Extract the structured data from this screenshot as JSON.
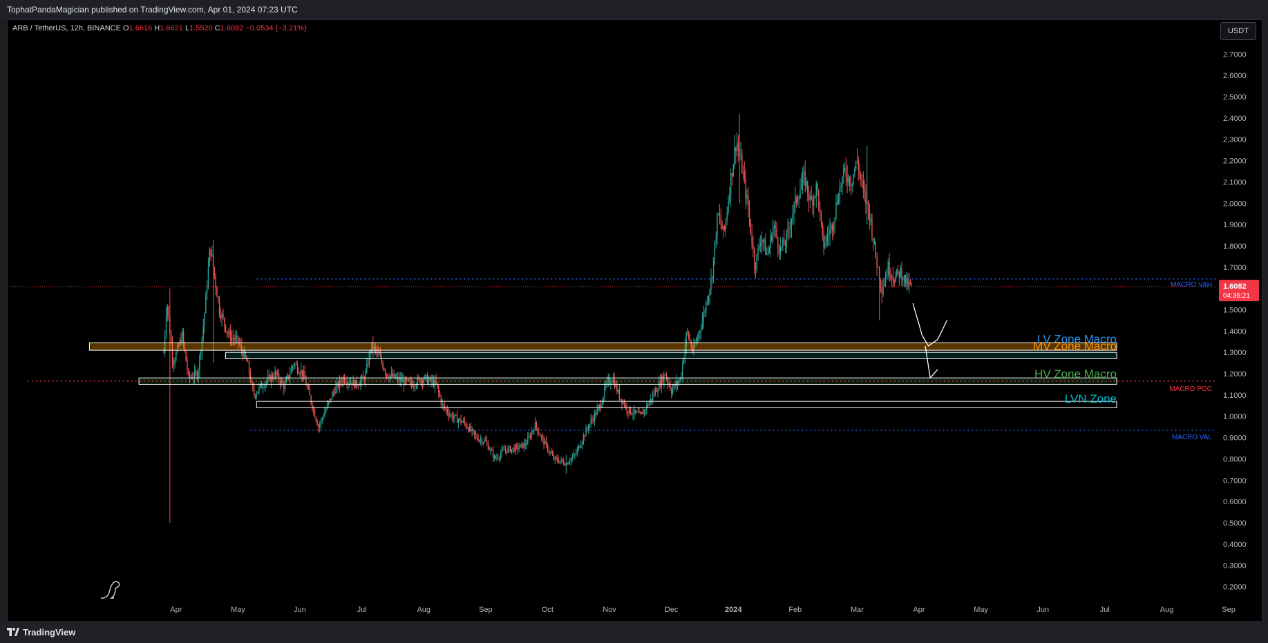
{
  "header": {
    "publisher_line": "TophatPandaMagician published on TradingView.com, Apr 01, 2024 07:23 UTC"
  },
  "symbol": {
    "name": "ARB / TetherUS, 12h, BINANCE",
    "open_label": "O",
    "open": "1.6616",
    "high_label": "H",
    "high": "1.6621",
    "low_label": "L",
    "low": "1.5520",
    "close_label": "C",
    "close": "1.6082",
    "change": "−0.0534 (−3.21%)"
  },
  "currency_button": "USDT",
  "footer": {
    "logo_text": "TradingView"
  },
  "colors": {
    "up": "#26a69a",
    "down": "#ef5350",
    "bg": "#000000",
    "axis_text": "#b2b5be",
    "blue_dotted": "#2962ff",
    "price_tag": "#f23645"
  },
  "chart_data": {
    "type": "candlestick",
    "title": "ARB / TetherUS, 12h, BINANCE",
    "ylim": [
      0.14,
      2.86
    ],
    "y_ticks": [
      "2.7000",
      "2.6000",
      "2.5000",
      "2.4000",
      "2.3000",
      "2.2000",
      "2.1000",
      "2.0000",
      "1.9000",
      "1.8000",
      "1.7000",
      "1.6000",
      "1.5000",
      "1.4000",
      "1.3000",
      "1.2000",
      "1.1000",
      "1.0000",
      "0.9000",
      "0.8000",
      "0.7000",
      "0.6000",
      "0.5000",
      "0.4000",
      "0.3000",
      "0.2000"
    ],
    "x_ticks": [
      {
        "label": "Apr",
        "m": 0.4
      },
      {
        "label": "May",
        "m": 1.4
      },
      {
        "label": "Jun",
        "m": 2.4
      },
      {
        "label": "Jul",
        "m": 3.4
      },
      {
        "label": "Aug",
        "m": 4.4
      },
      {
        "label": "Sep",
        "m": 5.4
      },
      {
        "label": "Oct",
        "m": 6.4
      },
      {
        "label": "Nov",
        "m": 7.4
      },
      {
        "label": "Dec",
        "m": 8.4
      },
      {
        "label": "2024",
        "m": 9.4
      },
      {
        "label": "Feb",
        "m": 10.4
      },
      {
        "label": "Mar",
        "m": 11.4
      },
      {
        "label": "Apr",
        "m": 12.4
      },
      {
        "label": "May",
        "m": 13.4
      },
      {
        "label": "Jun",
        "m": 14.4
      },
      {
        "label": "Jul",
        "m": 15.4
      },
      {
        "label": "Aug",
        "m": 16.4
      },
      {
        "label": "Sep",
        "m": 17.4
      }
    ],
    "price_path": [
      [
        0.2,
        1.3
      ],
      [
        0.25,
        1.55
      ],
      [
        0.35,
        1.25
      ],
      [
        0.5,
        1.38
      ],
      [
        0.6,
        1.18
      ],
      [
        0.75,
        1.2
      ],
      [
        0.85,
        1.45
      ],
      [
        0.95,
        1.8
      ],
      [
        1.1,
        1.5
      ],
      [
        1.25,
        1.38
      ],
      [
        1.4,
        1.35
      ],
      [
        1.55,
        1.25
      ],
      [
        1.65,
        1.1
      ],
      [
        1.8,
        1.15
      ],
      [
        2.0,
        1.2
      ],
      [
        2.15,
        1.14
      ],
      [
        2.3,
        1.25
      ],
      [
        2.45,
        1.2
      ],
      [
        2.6,
        1.05
      ],
      [
        2.7,
        0.95
      ],
      [
        2.8,
        1.02
      ],
      [
        2.95,
        1.12
      ],
      [
        3.1,
        1.18
      ],
      [
        3.3,
        1.15
      ],
      [
        3.45,
        1.18
      ],
      [
        3.55,
        1.33
      ],
      [
        3.65,
        1.3
      ],
      [
        3.8,
        1.2
      ],
      [
        4.0,
        1.17
      ],
      [
        4.2,
        1.15
      ],
      [
        4.4,
        1.18
      ],
      [
        4.6,
        1.15
      ],
      [
        4.7,
        1.05
      ],
      [
        4.85,
        1.0
      ],
      [
        5.05,
        0.97
      ],
      [
        5.25,
        0.9
      ],
      [
        5.4,
        0.88
      ],
      [
        5.55,
        0.8
      ],
      [
        5.7,
        0.84
      ],
      [
        5.9,
        0.85
      ],
      [
        6.05,
        0.87
      ],
      [
        6.2,
        0.96
      ],
      [
        6.3,
        0.9
      ],
      [
        6.5,
        0.8
      ],
      [
        6.7,
        0.78
      ],
      [
        6.85,
        0.82
      ],
      [
        7.05,
        0.95
      ],
      [
        7.25,
        1.05
      ],
      [
        7.35,
        1.15
      ],
      [
        7.45,
        1.18
      ],
      [
        7.55,
        1.1
      ],
      [
        7.7,
        1.03
      ],
      [
        7.9,
        1.0
      ],
      [
        8.05,
        1.07
      ],
      [
        8.2,
        1.15
      ],
      [
        8.3,
        1.2
      ],
      [
        8.4,
        1.12
      ],
      [
        8.55,
        1.18
      ],
      [
        8.65,
        1.4
      ],
      [
        8.75,
        1.3
      ],
      [
        8.9,
        1.45
      ],
      [
        9.05,
        1.65
      ],
      [
        9.15,
        1.95
      ],
      [
        9.25,
        1.85
      ],
      [
        9.35,
        2.1
      ],
      [
        9.45,
        2.3
      ],
      [
        9.55,
        2.15
      ],
      [
        9.65,
        1.95
      ],
      [
        9.75,
        1.7
      ],
      [
        9.85,
        1.85
      ],
      [
        9.95,
        1.75
      ],
      [
        10.05,
        1.9
      ],
      [
        10.15,
        1.78
      ],
      [
        10.25,
        1.82
      ],
      [
        10.35,
        1.95
      ],
      [
        10.45,
        2.05
      ],
      [
        10.55,
        2.12
      ],
      [
        10.65,
        2.0
      ],
      [
        10.75,
        2.08
      ],
      [
        10.85,
        1.8
      ],
      [
        11.0,
        1.9
      ],
      [
        11.1,
        2.05
      ],
      [
        11.2,
        2.15
      ],
      [
        11.3,
        2.1
      ],
      [
        11.4,
        2.2
      ],
      [
        11.5,
        2.05
      ],
      [
        11.6,
        1.95
      ],
      [
        11.7,
        1.75
      ],
      [
        11.8,
        1.6
      ],
      [
        11.9,
        1.7
      ],
      [
        12.0,
        1.65
      ],
      [
        12.1,
        1.68
      ],
      [
        12.2,
        1.62
      ],
      [
        12.28,
        1.61
      ]
    ],
    "extremes": [
      {
        "m": 0.3,
        "low": 0.5,
        "high": 1.6
      },
      {
        "m": 1.0,
        "low": 1.25,
        "high": 1.83
      },
      {
        "m": 9.5,
        "low": 2.0,
        "high": 2.42
      },
      {
        "m": 11.55,
        "low": 1.9,
        "high": 2.27
      },
      {
        "m": 11.75,
        "low": 1.45,
        "high": 1.7
      },
      {
        "m": 6.7,
        "low": 0.73,
        "high": 0.82
      }
    ],
    "levels": [
      {
        "name": "MACRO VAH",
        "price": 1.645,
        "color": "#2962ff",
        "style": "dotted",
        "start_m": 1.7
      },
      {
        "name": "MACRO POC",
        "price": 1.165,
        "color": "#f23645",
        "style": "dotted",
        "start_m": -2.0
      },
      {
        "name": "MACRO VAL",
        "price": 0.935,
        "color": "#2962ff",
        "style": "dotted",
        "start_m": 1.6
      }
    ],
    "current_line": {
      "price": 1.6082,
      "color": "#f23645"
    },
    "zones": [
      {
        "label": "LV Zone Macro",
        "low": 1.31,
        "high": 1.345,
        "start_m": -1.0,
        "label_color": "#2196f3",
        "border": "#ffffff",
        "fill": "rgba(255,152,0,0.35)"
      },
      {
        "label": "MV Zone Macro",
        "low": 1.27,
        "high": 1.3,
        "start_m": 1.2,
        "label_color": "#ff9800",
        "border": "#ffffff",
        "fill": "rgba(0,150,136,0.20)"
      },
      {
        "label": "HV Zone Macro",
        "low": 1.15,
        "high": 1.18,
        "start_m": -0.2,
        "label_color": "#4caf50",
        "border": "#ffffff",
        "fill": "rgba(76,175,80,0.15)"
      },
      {
        "label": "LVN Zone",
        "low": 1.04,
        "high": 1.07,
        "start_m": 1.7,
        "label_color": "#00bcd4",
        "border": "#ffffff",
        "fill": "rgba(0,0,0,0)"
      }
    ],
    "projection": [
      [
        [
          12.3,
          1.53
        ],
        [
          12.45,
          1.38
        ],
        [
          12.55,
          1.33
        ],
        [
          12.7,
          1.36
        ],
        [
          12.85,
          1.45
        ]
      ],
      [
        [
          12.5,
          1.33
        ],
        [
          12.58,
          1.18
        ],
        [
          12.7,
          1.22
        ]
      ]
    ],
    "price_tag": {
      "value": "1.6082",
      "countdown": "04:36:21"
    }
  }
}
